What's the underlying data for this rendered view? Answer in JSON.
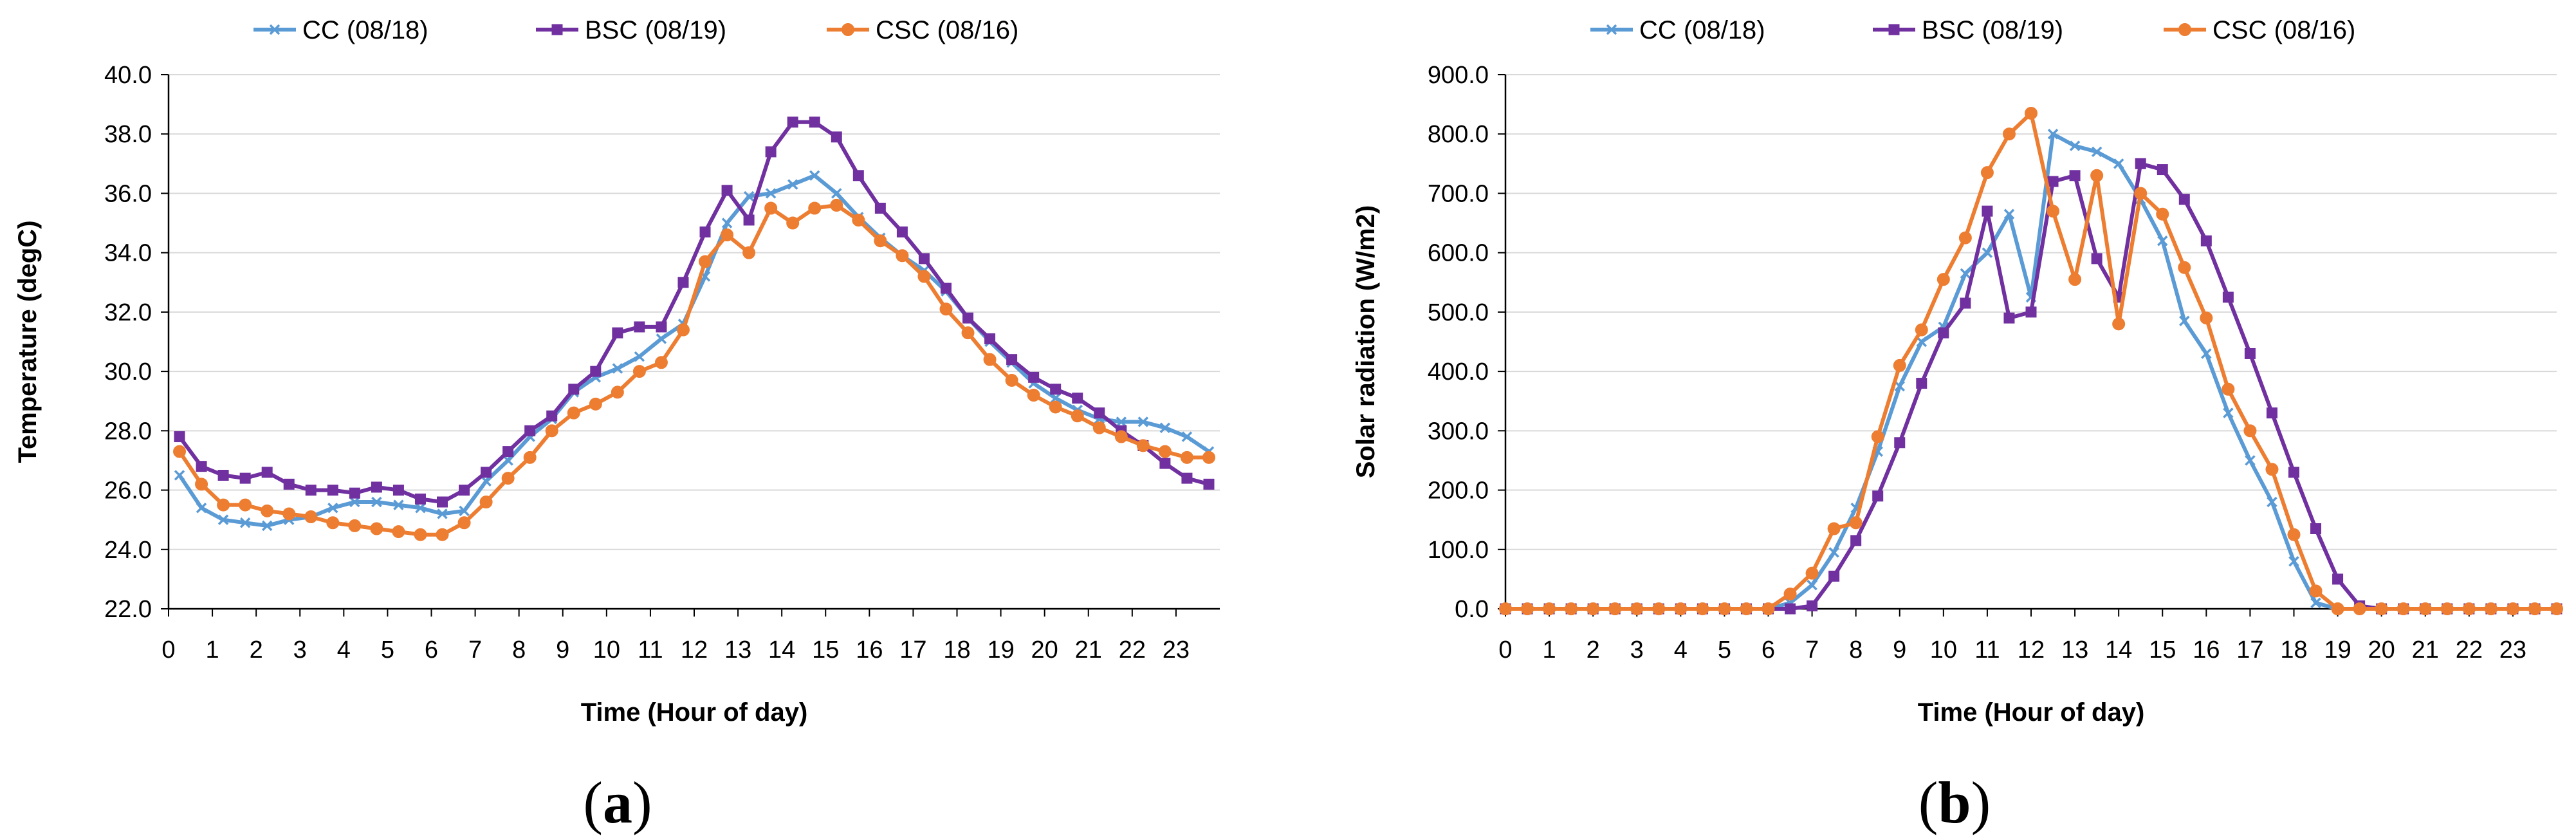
{
  "colors": {
    "CC": "#5B9BD5",
    "BSC": "#7030A0",
    "CSC": "#ED7D31",
    "grid": "#D9D9D9",
    "axis": "#000000"
  },
  "legend": [
    {
      "key": "CC",
      "label": "CC (08/18)",
      "marker": "x"
    },
    {
      "key": "BSC",
      "label": "BSC (08/19)",
      "marker": "square"
    },
    {
      "key": "CSC",
      "label": "CSC (08/16)",
      "marker": "circle"
    }
  ],
  "chart_data": [
    {
      "type": "line",
      "panel_label": "(a)",
      "panel_letter": "a",
      "title": "",
      "xlabel": "Time (Hour of day)",
      "ylabel": "Temperature (degC)",
      "xlim": [
        0,
        24
      ],
      "ylim": [
        22,
        40
      ],
      "ytick_step": 2,
      "ytick_decimals": 1,
      "xticks": [
        0,
        1,
        2,
        3,
        4,
        5,
        6,
        7,
        8,
        9,
        10,
        11,
        12,
        13,
        14,
        15,
        16,
        17,
        18,
        19,
        20,
        21,
        22,
        23
      ],
      "grid": "horizontal",
      "legend_position": "top",
      "x": [
        0.25,
        0.75,
        1.25,
        1.75,
        2.25,
        2.75,
        3.25,
        3.75,
        4.25,
        4.75,
        5.25,
        5.75,
        6.25,
        6.75,
        7.25,
        7.75,
        8.25,
        8.75,
        9.25,
        9.75,
        10.25,
        10.75,
        11.25,
        11.75,
        12.25,
        12.75,
        13.25,
        13.75,
        14.25,
        14.75,
        15.25,
        15.75,
        16.25,
        16.75,
        17.25,
        17.75,
        18.25,
        18.75,
        19.25,
        19.75,
        20.25,
        20.75,
        21.25,
        21.75,
        22.25,
        22.75,
        23.25,
        23.75
      ],
      "series": [
        {
          "name": "CC (08/18)",
          "key": "CC",
          "values": [
            26.5,
            25.4,
            25.0,
            24.9,
            24.8,
            25.0,
            25.1,
            25.4,
            25.6,
            25.6,
            25.5,
            25.4,
            25.2,
            25.3,
            26.3,
            27.0,
            27.8,
            28.4,
            29.3,
            29.8,
            30.1,
            30.5,
            31.1,
            31.6,
            33.2,
            35.0,
            35.9,
            36.0,
            36.3,
            36.6,
            36.0,
            35.2,
            34.5,
            33.9,
            33.4,
            32.7,
            31.8,
            31.0,
            30.3,
            29.6,
            29.1,
            28.7,
            28.4,
            28.3,
            28.3,
            28.1,
            27.8,
            27.3
          ]
        },
        {
          "name": "BSC (08/19)",
          "key": "BSC",
          "values": [
            27.8,
            26.8,
            26.5,
            26.4,
            26.6,
            26.2,
            26.0,
            26.0,
            25.9,
            26.1,
            26.0,
            25.7,
            25.6,
            26.0,
            26.6,
            27.3,
            28.0,
            28.5,
            29.4,
            30.0,
            31.3,
            31.5,
            31.5,
            33.0,
            34.7,
            36.1,
            35.1,
            37.4,
            38.4,
            38.4,
            37.9,
            36.6,
            35.5,
            34.7,
            33.8,
            32.8,
            31.8,
            31.1,
            30.4,
            29.8,
            29.4,
            29.1,
            28.6,
            28.0,
            27.5,
            26.9,
            26.4,
            26.2
          ]
        },
        {
          "name": "CSC (08/16)",
          "key": "CSC",
          "values": [
            27.3,
            26.2,
            25.5,
            25.5,
            25.3,
            25.2,
            25.1,
            24.9,
            24.8,
            24.7,
            24.6,
            24.5,
            24.5,
            24.9,
            25.6,
            26.4,
            27.1,
            28.0,
            28.6,
            28.9,
            29.3,
            30.0,
            30.3,
            31.4,
            33.7,
            34.6,
            34.0,
            35.5,
            35.0,
            35.5,
            35.6,
            35.1,
            34.4,
            33.9,
            33.2,
            32.1,
            31.3,
            30.4,
            29.7,
            29.2,
            28.8,
            28.5,
            28.1,
            27.8,
            27.5,
            27.3,
            27.1,
            27.1
          ]
        }
      ]
    },
    {
      "type": "line",
      "panel_label": "(b)",
      "panel_letter": "b",
      "title": "",
      "xlabel": "Time (Hour of day)",
      "ylabel": "Solar radiation (W/m2)",
      "xlim": [
        0,
        24
      ],
      "ylim": [
        0,
        900
      ],
      "ytick_step": 100,
      "ytick_decimals": 1,
      "xticks": [
        0,
        1,
        2,
        3,
        4,
        5,
        6,
        7,
        8,
        9,
        10,
        11,
        12,
        13,
        14,
        15,
        16,
        17,
        18,
        19,
        20,
        21,
        22,
        23
      ],
      "grid": "horizontal",
      "legend_position": "top",
      "x": [
        0.0,
        0.5,
        1.0,
        1.5,
        2.0,
        2.5,
        3.0,
        3.5,
        4.0,
        4.5,
        5.0,
        5.5,
        6.0,
        6.5,
        7.0,
        7.5,
        8.0,
        8.5,
        9.0,
        9.5,
        10.0,
        10.5,
        11.0,
        11.5,
        12.0,
        12.5,
        13.0,
        13.5,
        14.0,
        14.5,
        15.0,
        15.5,
        16.0,
        16.5,
        17.0,
        17.5,
        18.0,
        18.5,
        19.0,
        19.5,
        20.0,
        20.5,
        21.0,
        21.5,
        22.0,
        22.5,
        23.0,
        23.5,
        24.0
      ],
      "series": [
        {
          "name": "CC (08/18)",
          "key": "CC",
          "values": [
            0,
            0,
            0,
            0,
            0,
            0,
            0,
            0,
            0,
            0,
            0,
            0,
            0,
            10,
            40,
            95,
            170,
            265,
            375,
            450,
            475,
            565,
            600,
            665,
            525,
            800,
            780,
            770,
            750,
            690,
            620,
            485,
            430,
            330,
            250,
            180,
            80,
            10,
            0,
            0,
            0,
            0,
            0,
            0,
            0,
            0,
            0,
            0,
            0
          ]
        },
        {
          "name": "BSC (08/19)",
          "key": "BSC",
          "values": [
            0,
            0,
            0,
            0,
            0,
            0,
            0,
            0,
            0,
            0,
            0,
            0,
            0,
            0,
            5,
            55,
            115,
            190,
            280,
            380,
            465,
            515,
            670,
            490,
            500,
            720,
            730,
            590,
            525,
            750,
            740,
            690,
            620,
            525,
            430,
            330,
            230,
            135,
            50,
            5,
            0,
            0,
            0,
            0,
            0,
            0,
            0,
            0,
            0
          ]
        },
        {
          "name": "CSC (08/16)",
          "key": "CSC",
          "values": [
            0,
            0,
            0,
            0,
            0,
            0,
            0,
            0,
            0,
            0,
            0,
            0,
            0,
            25,
            60,
            135,
            145,
            290,
            410,
            470,
            555,
            625,
            735,
            800,
            835,
            670,
            555,
            730,
            480,
            700,
            665,
            575,
            490,
            370,
            300,
            235,
            125,
            30,
            0,
            0,
            0,
            0,
            0,
            0,
            0,
            0,
            0,
            0,
            0
          ]
        }
      ]
    }
  ]
}
